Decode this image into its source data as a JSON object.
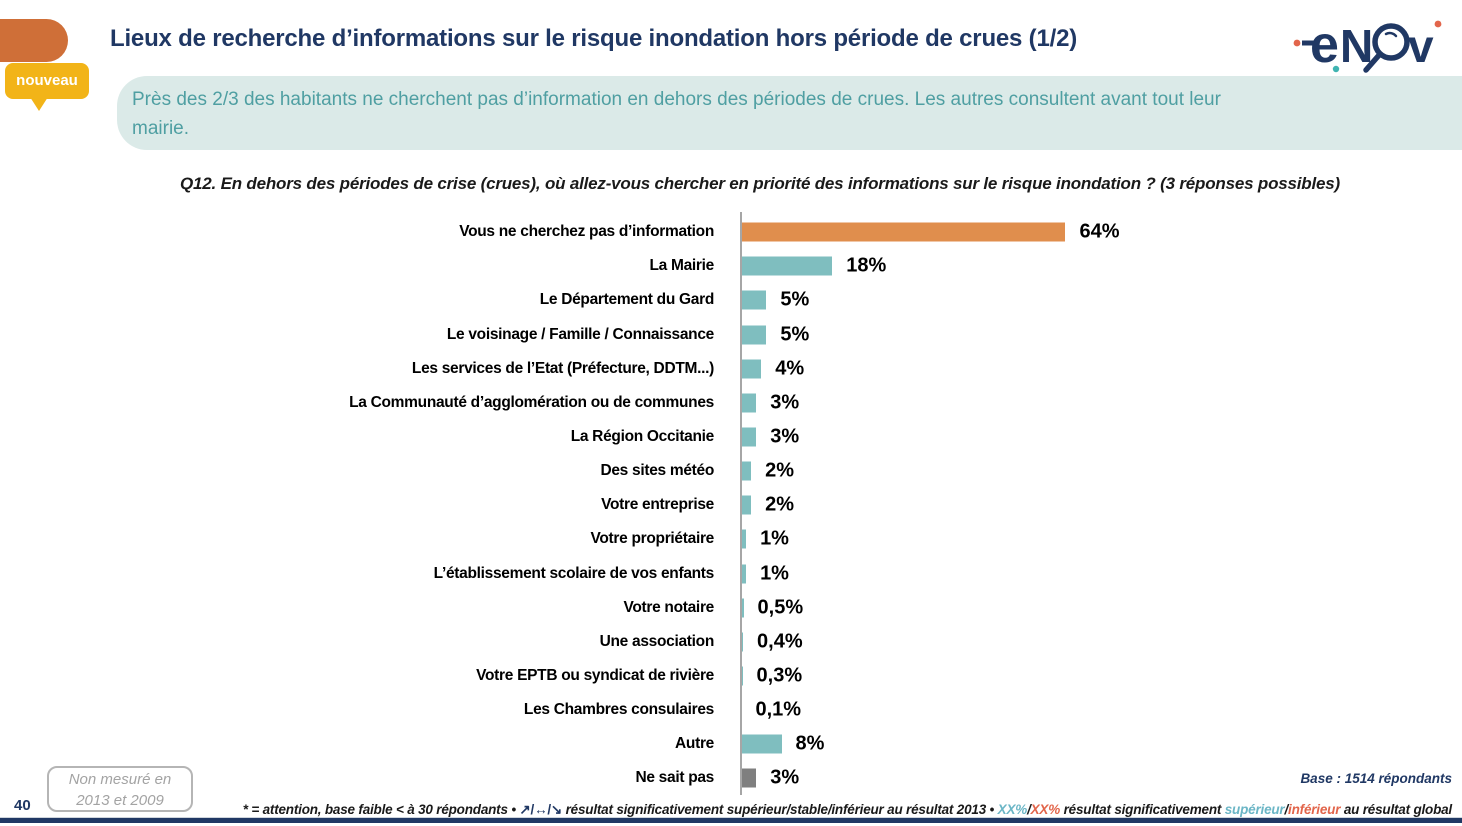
{
  "slide": {
    "number": "40",
    "title": "Lieux de recherche d’informations sur le risque inondation hors période de crues (1/2)",
    "badge": "nouveau",
    "summary_line1": "Près des 2/3 des habitants ne cherchent pas d’information en dehors des périodes de crues. Les autres consultent avant tout leur",
    "summary_line2": "mairie.",
    "question": "Q12. En dehors des périodes de crise (crues), où allez-vous chercher en priorité des informations sur le risque inondation ? (3 réponses possibles)",
    "note_line1": "Non mesuré en",
    "note_line2": "2013 et 2009",
    "base": "Base : 1514 répondants",
    "logo_name": "enov"
  },
  "footnote": {
    "part1": "* = attention, base faible < à 30 répondants • ",
    "arrows": "↗/↔/↘",
    "part2": " résultat significativement supérieur/stable/inférieur au résultat 2013 • ",
    "xx_sup": "XX%",
    "slash1": "/",
    "xx_inf": "XX%",
    "part3": " résultat significativement ",
    "sup_word": "supérieur",
    "slash2": "/",
    "inf_word": "inférieur",
    "part4": " au résultat global"
  },
  "chart_data": {
    "type": "bar",
    "orientation": "horizontal",
    "title": "Q12. En dehors des périodes de crise (crues), où allez-vous chercher en priorité des informations sur le risque inondation ? (3 réponses possibles)",
    "categories": [
      "Vous ne cherchez pas d’information",
      "La Mairie",
      "Le Département du Gard",
      "Le voisinage / Famille / Connaissance",
      "Les services de l’Etat (Préfecture, DDTM...)",
      "La Communauté d’agglomération ou de communes",
      "La Région Occitanie",
      "Des sites météo",
      "Votre entreprise",
      "Votre propriétaire",
      "L’établissement scolaire de vos enfants",
      "Votre notaire",
      "Une association",
      "Votre EPTB ou syndicat de rivière",
      "Les Chambres consulaires",
      "Autre",
      "Ne sait pas"
    ],
    "values": [
      64,
      18,
      5,
      5,
      4,
      3,
      3,
      2,
      2,
      1,
      1,
      0.5,
      0.4,
      0.3,
      0.1,
      8,
      3
    ],
    "value_labels": [
      "64%",
      "18%",
      "5%",
      "5%",
      "4%",
      "3%",
      "3%",
      "2%",
      "2%",
      "1%",
      "1%",
      "0,5%",
      "0,4%",
      "0,3%",
      "0,1%",
      "8%",
      "3%"
    ],
    "bar_colors": [
      "#E08E4D",
      "#7FBEBF",
      "#7FBEBF",
      "#7FBEBF",
      "#7FBEBF",
      "#7FBEBF",
      "#7FBEBF",
      "#7FBEBF",
      "#7FBEBF",
      "#7FBEBF",
      "#7FBEBF",
      "#7FBEBF",
      "#7FBEBF",
      "#7FBEBF",
      "#7FBEBF",
      "#7FBEBF",
      "#7F7F7F"
    ],
    "xlabel": "",
    "ylabel": "",
    "xlim": [
      0,
      100
    ],
    "grid": false,
    "x_axis_ticks": "none",
    "value_labels_position": "end-of-bar"
  },
  "colors": {
    "navy": "#203864",
    "header_tab_orange": "#CF6F38",
    "bar_orange": "#E08E4D",
    "bar_teal": "#7FBEBF",
    "bar_gray": "#7F7F7F",
    "axis_gray": "#A6A6A6",
    "banner_bg": "#DBEAE8",
    "banner_text": "#4F9FA2",
    "badge_yellow": "#F2B418",
    "footnote_teal": "#6BB6C6",
    "footnote_red": "#E2654B"
  }
}
